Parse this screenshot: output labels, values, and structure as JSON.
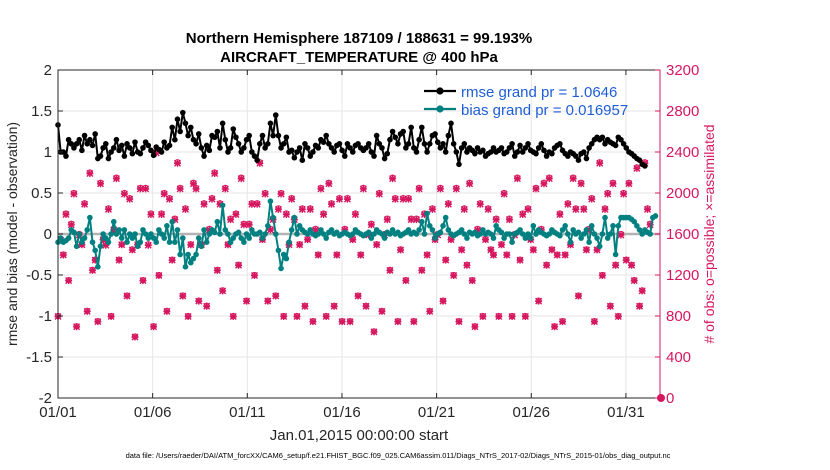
{
  "chart_data": {
    "type": "line",
    "title_line1": "Northern Hemisphere 187109 / 188631 = 99.193%",
    "title_line2": "AIRCRAFT_TEMPERATURE @ 400 hPa",
    "xlabel": "Jan.01,2015 00:00:00 start",
    "ylabel_left": "rmse and bias (model - observation)",
    "ylabel_right": "# of obs: o=possible; ×=assimilated",
    "footer": "data file: /Users/raeder/DAI/ATM_forcXX/CAM6_setup/f.e21.FHIST_BGC.f09_025.CAM6assim.011/Diags_NTrS_2017-02/Diags_NTrS_2015-01/obs_diag_output.nc",
    "xlim": [
      0,
      31.8
    ],
    "ylim_left": [
      -2,
      2
    ],
    "ylim_right": [
      0,
      3200
    ],
    "x_ticks": [
      0,
      5,
      10,
      15,
      20,
      25,
      30
    ],
    "x_tick_labels": [
      "01/01",
      "01/06",
      "01/11",
      "01/16",
      "01/21",
      "01/26",
      "01/31"
    ],
    "y_ticks_left": [
      -2,
      -1.5,
      -1,
      -0.5,
      0,
      0.5,
      1,
      1.5,
      2
    ],
    "y_tick_labels_left": [
      "-2",
      "-1.5",
      "-1",
      "-0.5",
      "0",
      "0.5",
      "1",
      "1.5",
      "2"
    ],
    "y_ticks_right": [
      0,
      400,
      800,
      1200,
      1600,
      2000,
      2400,
      2800,
      3200
    ],
    "y_tick_labels_right": [
      "0",
      "400",
      "800",
      "1200",
      "1600",
      "2000",
      "2400",
      "2800",
      "3200"
    ],
    "legend": [
      {
        "label": "rmse grand pr = 1.0646",
        "color": "#000000"
      },
      {
        "label": "bias grand pr = 0.016957",
        "color": "#008080"
      }
    ],
    "colors": {
      "rmse": "#000000",
      "bias": "#008080",
      "obs": "#d6175f",
      "legend_text": "#1f5ed6",
      "zero_line": "#b3b3b3",
      "grid": "#e6e6e6"
    },
    "series": [
      {
        "name": "rmse",
        "values": [
          1.33,
          1.0,
          1.0,
          0.95,
          1.15,
          1.1,
          1.05,
          1.1,
          1.15,
          1.02,
          1.2,
          1.1,
          1.15,
          1.08,
          1.22,
          0.92,
          0.95,
          1.05,
          1.1,
          0.92,
          1.0,
          1.05,
          1.15,
          1.02,
          1.08,
          0.95,
          1.1,
          1.05,
          0.98,
          1.12,
          1.0,
          0.98,
          1.05,
          1.12,
          1.08,
          1.02,
          0.96,
          1.06,
          1.03,
          1.0,
          1.12,
          1.05,
          1.08,
          1.3,
          1.15,
          1.4,
          1.25,
          1.48,
          1.35,
          1.2,
          1.3,
          1.15,
          1.1,
          1.22,
          1.05,
          0.95,
          1.08,
          1.02,
          1.2,
          1.18,
          1.25,
          1.05,
          1.35,
          1.15,
          1.0,
          1.05,
          1.28,
          1.18,
          1.1,
          1.0,
          1.05,
          1.15,
          1.2,
          1.0,
          0.95,
          0.9,
          1.1,
          1.2,
          1.05,
          1.1,
          1.35,
          1.2,
          1.45,
          1.2,
          1.05,
          1.1,
          1.18,
          1.0,
          1.02,
          0.93,
          1.0,
          1.05,
          0.9,
          1.1,
          1.05,
          0.95,
          1.0,
          1.08,
          1.05,
          1.15,
          1.12,
          1.2,
          1.1,
          1.05,
          1.0,
          1.08,
          1.1,
          1.02,
          0.95,
          1.1,
          1.05,
          1.0,
          1.08,
          1.1,
          1.05,
          1.02,
          1.05,
          1.1,
          1.0,
          0.95,
          1.2,
          1.1,
          1.05,
          0.92,
          0.98,
          1.15,
          1.25,
          1.18,
          1.1,
          1.22,
          1.25,
          1.05,
          1.1,
          1.3,
          1.05,
          1.0,
          1.15,
          1.3,
          1.1,
          1.0,
          1.1,
          1.2,
          1.22,
          1.12,
          1.05,
          1.1,
          1.0,
          1.2,
          1.35,
          1.1,
          1.0,
          0.85,
          1.05,
          1.1,
          1.0,
          1.05,
          1.02,
          0.98,
          1.05,
          1.0,
          1.02,
          0.95,
          0.98,
          1.0,
          1.05,
          1.0,
          1.02,
          1.05,
          0.98,
          1.0,
          1.05,
          1.1,
          0.95,
          1.0,
          1.08,
          1.0,
          1.05,
          1.1,
          1.02,
          1.0,
          0.98,
          1.05,
          1.1,
          1.02,
          0.95,
          1.0,
          0.98,
          1.05,
          1.08,
          1.1,
          1.02,
          0.98,
          0.95,
          1.0,
          0.98,
          0.95,
          0.9,
          0.98,
          1.0,
          0.92,
          1.05,
          1.1,
          1.15,
          1.18,
          1.15,
          1.18,
          1.1,
          1.15,
          1.12,
          1.1,
          1.08,
          1.18,
          1.15,
          1.1,
          1.05,
          1.0,
          0.98,
          0.95,
          0.92,
          0.9,
          0.85,
          0.83
        ]
      },
      {
        "name": "bias",
        "values": [
          -0.1,
          -0.05,
          -0.1,
          -0.08,
          -0.05,
          0.05,
          0.02,
          -0.15,
          0.0,
          -0.1,
          -0.05,
          0.05,
          0.2,
          -0.1,
          -0.2,
          -0.4,
          -0.15,
          0.0,
          -0.05,
          -0.1,
          0.0,
          0.15,
          0.0,
          0.05,
          -0.05,
          0.05,
          -0.1,
          0.0,
          -0.05,
          0.0,
          -0.15,
          -0.1,
          0.05,
          0.0,
          -0.05,
          0.0,
          -0.05,
          -0.1,
          0.05,
          0.0,
          -0.05,
          0.1,
          -0.1,
          0.15,
          -0.1,
          0.05,
          -0.25,
          -0.05,
          -0.4,
          -0.25,
          -0.35,
          -0.3,
          -0.25,
          -0.05,
          -0.15,
          0.05,
          -0.1,
          0.0,
          0.05,
          0.02,
          0.15,
          0.0,
          0.35,
          0.05,
          0.0,
          -0.1,
          -0.05,
          0.0,
          0.02,
          -0.05,
          -0.1,
          0.0,
          -0.05,
          0.05,
          0.0,
          0.0,
          0.02,
          -0.05,
          0.0,
          0.1,
          0.4,
          0.2,
          0.0,
          -0.2,
          -0.42,
          -0.25,
          -0.3,
          -0.1,
          0.05,
          0.2,
          0.0,
          0.1,
          0.05,
          0.02,
          0.0,
          0.05,
          0.0,
          -0.02,
          0.0,
          0.05,
          0.0,
          -0.05,
          0.02,
          0.05,
          0.0,
          0.02,
          -0.02,
          0.0,
          0.02,
          0.0,
          -0.02,
          0.0,
          0.05,
          0.02,
          0.0,
          -0.02,
          0.0,
          0.02,
          -0.05,
          0.0,
          0.05,
          0.02,
          0.0,
          -0.05,
          0.02,
          0.0,
          0.05,
          0.0,
          0.02,
          -0.02,
          0.0,
          0.02,
          0.05,
          0.0,
          0.02,
          0.0,
          0.05,
          0.15,
          0.0,
          0.25,
          0.1,
          0.05,
          -0.05,
          0.0,
          0.02,
          0.1,
          0.2,
          0.05,
          0.0,
          -0.02,
          0.0,
          0.02,
          0.05,
          0.0,
          -0.05,
          0.02,
          0.0,
          0.02,
          -0.02,
          0.0,
          0.05,
          0.0,
          0.02,
          0.0,
          -0.05,
          0.1,
          0.05,
          0.02,
          -0.05,
          0.0,
          0.0,
          -0.1,
          0.0,
          0.02,
          0.05,
          0.0,
          -0.05,
          0.0,
          -0.05,
          0.1,
          0.0,
          0.05,
          0.02,
          0.0,
          -0.02,
          0.0,
          0.05,
          0.02,
          0.0,
          -0.02,
          0.05,
          0.1,
          0.0,
          -0.1,
          0.05,
          0.0,
          0.02,
          -0.05,
          0.0,
          0.05,
          -0.1,
          0.1,
          0.0,
          -0.05,
          -0.15,
          0.0,
          0.2,
          -0.05,
          0.0,
          0.1,
          -0.25,
          0.1,
          0.2,
          0.2,
          0.2,
          0.2,
          0.18,
          0.15,
          0.1,
          0.05,
          0.0,
          0.05,
          0.02,
          0.0,
          0.2,
          0.22
        ]
      },
      {
        "name": "obs_possible",
        "values": [
          800,
          1550,
          1400,
          1800,
          1150,
          1700,
          2000,
          700,
          1600,
          1500,
          1900,
          850,
          2200,
          1250,
          1350,
          750,
          2100,
          1550,
          1500,
          1850,
          800,
          1650,
          2150,
          1350,
          1500,
          2000,
          1000,
          1950,
          1450,
          600,
          1500,
          2050,
          1150,
          2050,
          1500,
          1800,
          700,
          2400,
          1200,
          1800,
          2000,
          850,
          1950,
          1350,
          1750,
          2300,
          2050,
          1000,
          1850,
          800,
          1500,
          2100,
          2050,
          950,
          1500,
          1900,
          900,
          1650,
          1950,
          2200,
          1250,
          1900,
          1050,
          2050,
          1500,
          1750,
          800,
          1800,
          1300,
          2150,
          1700,
          950,
          1700,
          1900,
          1200,
          1900,
          2300,
          1550,
          2000,
          950,
          1650,
          1750,
          1000,
          1850,
          2000,
          800,
          1800,
          1500,
          1950,
          1750,
          800,
          1500,
          1850,
          900,
          1550,
          1850,
          750,
          1650,
          1400,
          2050,
          1800,
          800,
          2100,
          1900,
          900,
          1400,
          1950,
          750,
          1650,
          1950,
          750,
          1550,
          1800,
          1000,
          1400,
          2050,
          900,
          1600,
          1700,
          650,
          1500,
          2000,
          850,
          1600,
          1750,
          1250,
          2150,
          1950,
          750,
          1450,
          1950,
          1150,
          1950,
          1750,
          750,
          1750,
          2050,
          1250,
          1800,
          1400,
          850,
          1850,
          1550,
          1600,
          2050,
          950,
          1350,
          1900,
          1550,
          1200,
          2050,
          750,
          1450,
          1850,
          1300,
          2100,
          1150,
          700,
          1650,
          1900,
          800,
          1550,
          1850,
          1450,
          1400,
          1750,
          800,
          1500,
          2000,
          1400,
          1750,
          800,
          1600,
          2150,
          1350,
          1800,
          800,
          1850,
          1550,
          1450,
          2050,
          950,
          1650,
          2100,
          1300,
          2150,
          1450,
          700,
          1400,
          1800,
          750,
          1400,
          1900,
          1500,
          2150,
          1850,
          1000,
          2100,
          1850,
          1450,
          1650,
          1950,
          750,
          1450,
          2300,
          1200,
          1850,
          2000,
          900,
          2100,
          1300,
          800,
          1600,
          2000,
          1350,
          2100,
          1300,
          1150,
          2250,
          900,
          1050,
          2300,
          1850,
          1700
        ]
      },
      {
        "name": "obs_assimilated",
        "values": [
          795,
          1540,
          1395,
          1790,
          1145,
          1690,
          1990,
          695,
          1590,
          1495,
          1890,
          845,
          2190,
          1245,
          1345,
          745,
          2090,
          1545,
          1490,
          1840,
          795,
          1640,
          2140,
          1345,
          1495,
          1990,
          995,
          1940,
          1445,
          595,
          1495,
          2040,
          1145,
          2040,
          1490,
          1790,
          695,
          2390,
          1195,
          1790,
          1990,
          845,
          1940,
          1345,
          1740,
          2290,
          2040,
          995,
          1840,
          795,
          1495,
          2090,
          2040,
          945,
          1495,
          1890,
          895,
          1640,
          1940,
          2190,
          1245,
          1890,
          1045,
          2040,
          1495,
          1740,
          795,
          1790,
          1295,
          2140,
          1690,
          945,
          1690,
          1890,
          1195,
          1890,
          2290,
          1545,
          1990,
          945,
          1640,
          1740,
          995,
          1840,
          1990,
          795,
          1790,
          1495,
          1940,
          1740,
          795,
          1495,
          1840,
          895,
          1545,
          1840,
          745,
          1640,
          1395,
          2040,
          1790,
          795,
          2090,
          1890,
          895,
          1395,
          1940,
          745,
          1640,
          1940,
          745,
          1545,
          1790,
          995,
          1395,
          2040,
          895,
          1590,
          1690,
          645,
          1495,
          1990,
          845,
          1590,
          1740,
          1245,
          2140,
          1940,
          745,
          1445,
          1940,
          1145,
          1940,
          1740,
          745,
          1740,
          2040,
          1245,
          1790,
          1395,
          845,
          1840,
          1545,
          1590,
          2040,
          945,
          1345,
          1890,
          1545,
          1195,
          2040,
          745,
          1445,
          1840,
          1295,
          2090,
          1145,
          695,
          1640,
          1890,
          795,
          1545,
          1840,
          1445,
          1395,
          1740,
          795,
          1495,
          1990,
          1395,
          1740,
          795,
          1590,
          2140,
          1345,
          1790,
          795,
          1840,
          1545,
          1445,
          2040,
          945,
          1640,
          2090,
          1295,
          2140,
          1445,
          695,
          1395,
          1790,
          745,
          1395,
          1890,
          1495,
          2140,
          1840,
          995,
          2090,
          1840,
          1445,
          1640,
          1940,
          745,
          1445,
          2290,
          1195,
          1840,
          1990,
          895,
          2090,
          1295,
          795,
          1590,
          1990,
          1345,
          2090,
          1295,
          1145,
          2240,
          895,
          1045,
          2290,
          1840,
          1690
        ]
      }
    ]
  }
}
